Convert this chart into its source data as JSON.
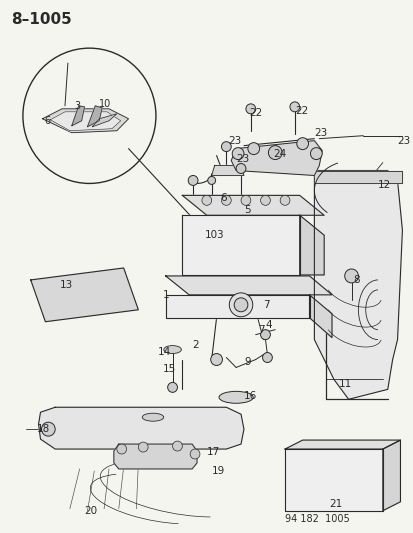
{
  "title": "8–1005",
  "footer": "94 182  1005",
  "bg_color": "#f5f5f0",
  "fg_color": "#333333",
  "figsize": [
    4.14,
    5.33
  ],
  "dpi": 100
}
